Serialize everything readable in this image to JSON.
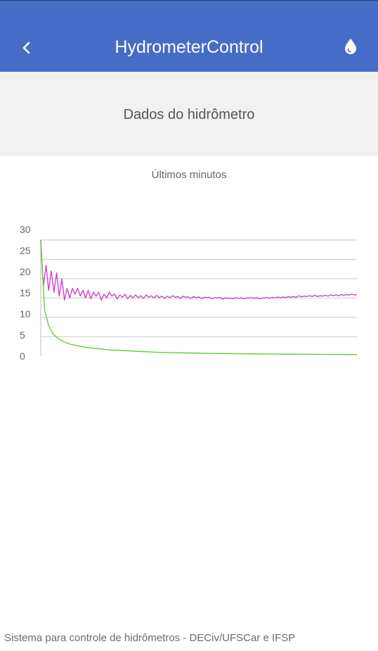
{
  "appbar": {
    "title": "HydrometerControl",
    "back_icon": "chevron-left-icon",
    "action_icon": "water-drop-icon",
    "color": "#476cc8"
  },
  "section": {
    "title": "Dados do hidrômetro"
  },
  "chart_data": {
    "type": "line",
    "title": "Últimos minutos",
    "xlabel": "",
    "ylabel": "",
    "ylim": [
      0,
      30
    ],
    "yticks": [
      "30",
      "25",
      "20",
      "15",
      "10",
      "5",
      "0"
    ],
    "grid": true,
    "legend": "none",
    "series": [
      {
        "color": "#cc44cc",
        "values": [
          30,
          18,
          23.5,
          17,
          22,
          16.5,
          21.5,
          15.5,
          20,
          14.5,
          17.5,
          15,
          17.5,
          16,
          17.5,
          15.5,
          17,
          15,
          17,
          14.8,
          16.5,
          15.5,
          16.5,
          14.5,
          16,
          15,
          16.5,
          15.5,
          16,
          14.8,
          15.8,
          15.2,
          16,
          14.8,
          15.7,
          15,
          15.8,
          15.1,
          15.6,
          14.9,
          15.8,
          15.2,
          15.6,
          15,
          15.7,
          15.1,
          15.5,
          14.9,
          15.5,
          15.1,
          15.6,
          15.2,
          15.4,
          14.9,
          15.5,
          15.2,
          15.3,
          14.9,
          15.4,
          15.1,
          15.3,
          14.8,
          15.2,
          15.1,
          15.2,
          14.8,
          15.1,
          15,
          15.2,
          14.7,
          15.1,
          14.9,
          15,
          14.8,
          15.1,
          14.9,
          15.1,
          14.8,
          15,
          15,
          15.1,
          14.9,
          15.1,
          14.8,
          15,
          15,
          15.2,
          14.9,
          15.2,
          15,
          15.3,
          15,
          15.3,
          15.1,
          15.4,
          15.2,
          15.4,
          15.2,
          15.6,
          15.3,
          15.5,
          15.4,
          15.6,
          15.4,
          15.7,
          15.4,
          15.6,
          15.5,
          15.7,
          15.5,
          15.8,
          15.6,
          15.8,
          15.6,
          15.9,
          15.7,
          15.9,
          15.8,
          16,
          15.8,
          15.9
        ]
      },
      {
        "color": "#66cc33",
        "values": [
          29.5,
          12,
          8,
          6,
          5,
          4.2,
          3.7,
          3.3,
          3,
          2.8,
          2.6,
          2.4,
          2.25,
          2.1,
          2,
          1.9,
          1.8,
          1.7,
          1.6,
          1.55,
          1.5,
          1.45,
          1.4,
          1.35,
          1.3,
          1.25,
          1.2,
          1.15,
          1.1,
          1.05,
          1,
          0.98,
          0.95,
          0.92,
          0.9,
          0.88,
          0.86,
          0.84,
          0.82,
          0.8,
          0.78,
          0.76,
          0.74,
          0.72,
          0.7,
          0.69,
          0.68,
          0.67,
          0.66,
          0.65,
          0.64,
          0.63,
          0.62,
          0.61,
          0.6,
          0.59,
          0.58,
          0.57,
          0.56,
          0.55,
          0.54,
          0.53,
          0.52,
          0.51,
          0.5,
          0.5,
          0.49,
          0.48,
          0.48,
          0.47,
          0.46,
          0.46,
          0.45,
          0.45,
          0.44,
          0.44,
          0.43,
          0.43,
          0.42,
          0.42,
          0.41,
          0.41,
          0.4
        ]
      }
    ]
  },
  "footer": {
    "text": "Sistema para controle de hidrômetros - DECiv/UFSCar e IFSP"
  }
}
